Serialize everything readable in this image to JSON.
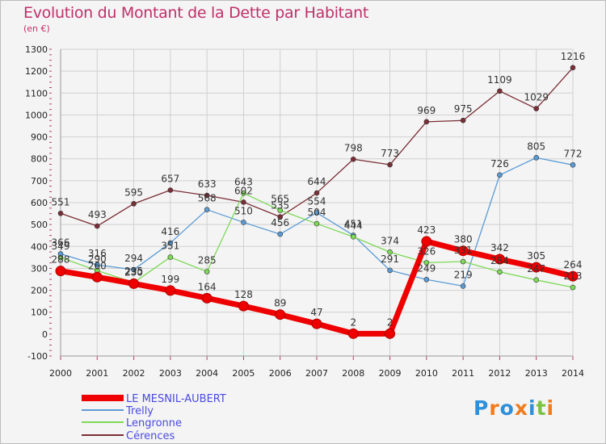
{
  "title": "Evolution du Montant de la Dette par Habitant",
  "unit_label": "(en €)",
  "logo": "Proxiti",
  "logo_colors": [
    "#2f8fd8",
    "#f07c1c",
    "#2f8fd8",
    "#f07c1c",
    "#2f8fd8",
    "#7cc242",
    "#f07c1c"
  ],
  "chart_data": {
    "type": "line",
    "title": "Evolution du Montant de la Dette par Habitant",
    "ylabel": "(en €)",
    "xlabel": "",
    "x": [
      "2000",
      "2001",
      "2002",
      "2003",
      "2004",
      "2005",
      "2006",
      "2007",
      "2008",
      "2009",
      "2010",
      "2011",
      "2012",
      "2013",
      "2014"
    ],
    "ylim": [
      -100,
      1300
    ],
    "yticks": [
      -100,
      0,
      100,
      200,
      300,
      400,
      500,
      600,
      700,
      800,
      900,
      1000,
      1100,
      1200,
      1300
    ],
    "grid": true,
    "legend_position": "bottom-left",
    "series": [
      {
        "name": "LE MESNIL-AUBERT",
        "color": "#ee0000",
        "width": 7,
        "values": [
          288,
          260,
          230,
          199,
          164,
          128,
          89,
          47,
          2,
          2,
          423,
          380,
          342,
          305,
          264
        ]
      },
      {
        "name": "Trelly",
        "color": "#5b9bd5",
        "width": 1.3,
        "values": [
          366,
          316,
          294,
          416,
          568,
          510,
          456,
          554,
          451,
          291,
          249,
          219,
          726,
          805,
          772
        ]
      },
      {
        "name": "Lengronne",
        "color": "#7ed957",
        "width": 1.3,
        "values": [
          349,
          290,
          235,
          351,
          285,
          643,
          565,
          504,
          444,
          374,
          326,
          331,
          284,
          247,
          213
        ]
      },
      {
        "name": "Cérences",
        "color": "#7a2e35",
        "width": 1.3,
        "values": [
          551,
          493,
          595,
          657,
          633,
          602,
          535,
          644,
          798,
          773,
          969,
          975,
          1109,
          1029,
          1216
        ]
      }
    ],
    "point_labels": [
      {
        "series": 0,
        "values": [
          288,
          260,
          230,
          199,
          164,
          128,
          89,
          47,
          2,
          2,
          423,
          380,
          342,
          305,
          264
        ]
      },
      {
        "series": 1,
        "values": [
          366,
          316,
          294,
          416,
          568,
          510,
          456,
          554,
          451,
          291,
          249,
          219,
          726,
          805,
          772
        ]
      },
      {
        "series": 2,
        "values": [
          349,
          290,
          235,
          351,
          285,
          643,
          565,
          504,
          444,
          374,
          326,
          331,
          284,
          247,
          213
        ]
      },
      {
        "series": 3,
        "values": [
          551,
          493,
          595,
          657,
          633,
          602,
          535,
          644,
          798,
          773,
          969,
          975,
          1109,
          1029,
          1216
        ]
      }
    ]
  }
}
